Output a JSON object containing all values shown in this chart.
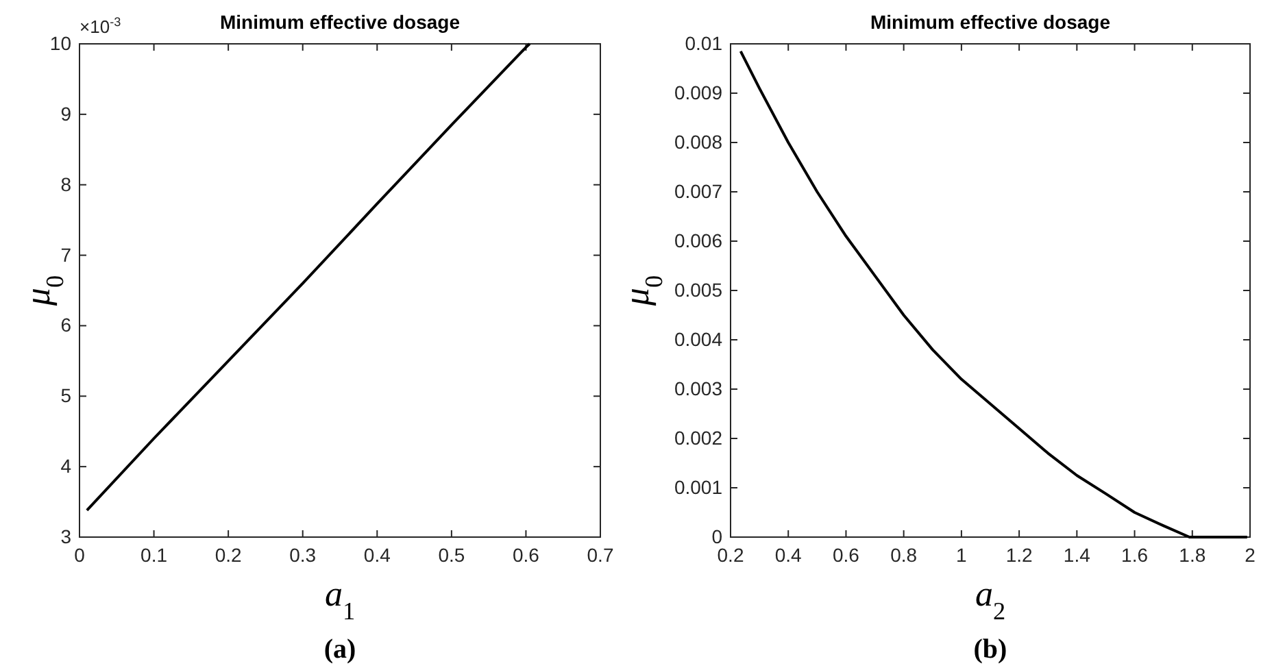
{
  "chart_data": [
    {
      "type": "line",
      "title": "Minimum effective dosage",
      "xlabel": "a$_{1}$",
      "ylabel": "μ$_{0}$",
      "xlim": [
        0,
        0.7
      ],
      "xticks": [
        0,
        0.1,
        0.2,
        0.3,
        0.4,
        0.5,
        0.6,
        0.7
      ],
      "ylim": [
        3,
        10
      ],
      "yticks": [
        3,
        4,
        5,
        6,
        7,
        8,
        9,
        10
      ],
      "annotations": [
        "×10$^{-3}$",
        "(a)"
      ],
      "series": [
        {
          "color": "#000000",
          "x": [
            0.01,
            0.1,
            0.2,
            0.3,
            0.4,
            0.5,
            0.6,
            0.605
          ],
          "values": [
            3.38,
            4.4,
            5.5,
            6.6,
            7.73,
            8.85,
            9.95,
            10.0
          ]
        }
      ]
    },
    {
      "type": "line",
      "title": "Minimum effective dosage",
      "xlabel": "a$_{2}$",
      "ylabel": "μ$_{0}$",
      "xlim": [
        0.2,
        2
      ],
      "xticks": [
        0.2,
        0.4,
        0.6,
        0.8,
        1,
        1.2,
        1.4,
        1.6,
        1.8,
        2
      ],
      "ylim": [
        0,
        0.01
      ],
      "yticks": [
        0,
        0.001,
        0.002,
        0.003,
        0.004,
        0.005,
        0.006,
        0.007,
        0.008,
        0.009,
        0.01
      ],
      "annotations": [
        "(b)"
      ],
      "series": [
        {
          "color": "#000000",
          "x": [
            0.235,
            0.3,
            0.4,
            0.5,
            0.6,
            0.7,
            0.8,
            0.9,
            1.0,
            1.1,
            1.2,
            1.3,
            1.4,
            1.5,
            1.6,
            1.7,
            1.79,
            1.9,
            1.99
          ],
          "values": [
            0.00985,
            0.0091,
            0.008,
            0.007,
            0.0061,
            0.0053,
            0.0045,
            0.0038,
            0.0032,
            0.0027,
            0.0022,
            0.0017,
            0.00125,
            0.00088,
            0.0005,
            0.00023,
            0,
            0,
            0
          ]
        }
      ]
    }
  ]
}
